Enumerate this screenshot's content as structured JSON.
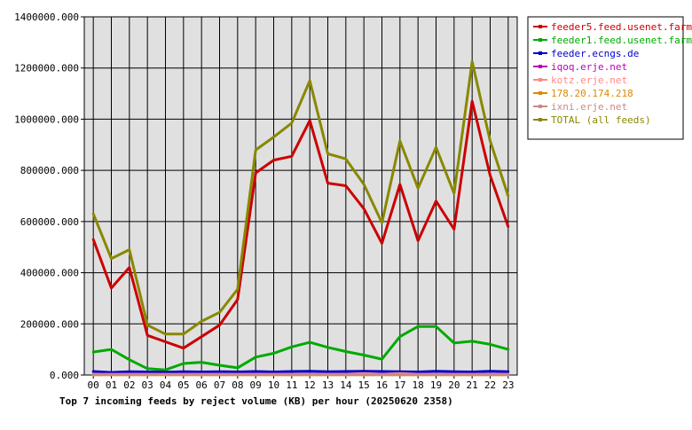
{
  "chart_data": {
    "type": "line",
    "title": "Top 7 incoming feeds by reject volume (KB) per hour (20250620 2358)",
    "categories": [
      "00",
      "01",
      "02",
      "03",
      "04",
      "05",
      "06",
      "07",
      "08",
      "09",
      "10",
      "11",
      "12",
      "13",
      "14",
      "15",
      "16",
      "17",
      "18",
      "19",
      "20",
      "21",
      "22",
      "23"
    ],
    "ylim": [
      0,
      1400000
    ],
    "y_ticks": [
      0,
      200000,
      400000,
      600000,
      800000,
      1000000,
      1200000,
      1400000
    ],
    "y_tick_labels": [
      "0.000",
      "200000.000",
      "400000.000",
      "600000.000",
      "800000.000",
      "1000000.000",
      "1200000.000",
      "1400000.000"
    ],
    "grid": true,
    "legend_position": "right",
    "series": [
      {
        "name": "feeder5.feed.usenet.farm",
        "color": "#cc0000",
        "values": [
          530000,
          340000,
          420000,
          155000,
          130000,
          105000,
          150000,
          195000,
          295000,
          790000,
          840000,
          855000,
          995000,
          750000,
          740000,
          650000,
          515000,
          745000,
          525000,
          680000,
          570000,
          1070000,
          780000,
          580000
        ]
      },
      {
        "name": "feeder1.feed.usenet.farm",
        "color": "#00aa00",
        "values": [
          90000,
          100000,
          60000,
          25000,
          20000,
          45000,
          50000,
          38000,
          28000,
          70000,
          85000,
          110000,
          128000,
          108000,
          92000,
          78000,
          62000,
          150000,
          190000,
          190000,
          125000,
          132000,
          120000,
          100000
        ]
      },
      {
        "name": "feeder.ecngs.de",
        "color": "#0000cc",
        "values": [
          14000,
          10000,
          13000,
          12000,
          11000,
          13000,
          12000,
          13000,
          12000,
          14000,
          12000,
          14000,
          15000,
          13000,
          14000,
          15000,
          14000,
          13000,
          12000,
          15000,
          13000,
          12000,
          15000,
          13000
        ]
      },
      {
        "name": "iqoq.erje.net",
        "color": "#bb00bb",
        "values": [
          2000,
          2000,
          2000,
          2000,
          2000,
          2000,
          2000,
          2000,
          2000,
          2000,
          2000,
          2000,
          2000,
          2000,
          2000,
          2000,
          2000,
          2000,
          2000,
          2000,
          2000,
          2000,
          2000,
          2000
        ]
      },
      {
        "name": "kotz.erje.net",
        "color": "#ff8888",
        "values": [
          3000,
          3000,
          3000,
          3000,
          3000,
          3000,
          3000,
          3000,
          3000,
          3000,
          3000,
          3000,
          3000,
          3000,
          3000,
          6000,
          3000,
          6000,
          3000,
          3000,
          3000,
          3000,
          3000,
          3000
        ]
      },
      {
        "name": "178.20.174.218",
        "color": "#dd8800",
        "values": [
          1000,
          1000,
          1000,
          1000,
          1000,
          1000,
          1000,
          1000,
          1000,
          1000,
          1000,
          1000,
          1000,
          1000,
          1000,
          1000,
          1000,
          1000,
          1000,
          1000,
          1000,
          1000,
          1000,
          1000
        ]
      },
      {
        "name": "ixni.erje.net",
        "color": "#cc8888",
        "values": [
          1500,
          1500,
          1500,
          1500,
          1500,
          1500,
          1500,
          1500,
          1500,
          1500,
          1500,
          1500,
          1500,
          1500,
          1500,
          1500,
          1500,
          1500,
          1500,
          1500,
          1500,
          1500,
          1500,
          1500
        ]
      },
      {
        "name": "TOTAL (all feeds)",
        "color": "#888800",
        "values": [
          630000,
          455000,
          490000,
          195000,
          160000,
          160000,
          210000,
          245000,
          335000,
          880000,
          930000,
          985000,
          1150000,
          865000,
          845000,
          745000,
          595000,
          915000,
          730000,
          890000,
          710000,
          1225000,
          915000,
          700000
        ]
      }
    ]
  }
}
